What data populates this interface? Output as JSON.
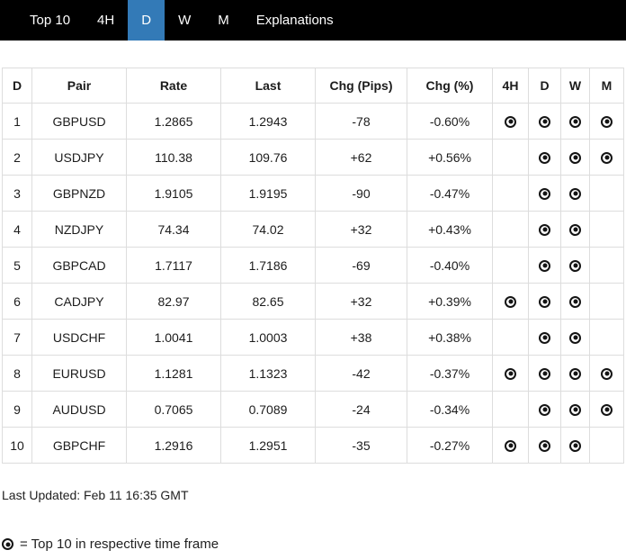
{
  "navbar": {
    "items": [
      {
        "label": "Top 10",
        "active": false
      },
      {
        "label": "4H",
        "active": false
      },
      {
        "label": "D",
        "active": true
      },
      {
        "label": "W",
        "active": false
      },
      {
        "label": "M",
        "active": false
      },
      {
        "label": "Explanations",
        "active": false
      }
    ]
  },
  "table": {
    "columns": [
      "D",
      "Pair",
      "Rate",
      "Last",
      "Chg (Pips)",
      "Chg (%)",
      "4H",
      "D",
      "W",
      "M"
    ],
    "rows": [
      {
        "rank": "1",
        "pair": "GBPUSD",
        "rate": "1.2865",
        "last": "1.2943",
        "chg_pips": "-78",
        "chg_pct": "-0.60%",
        "timeframes": {
          "4H": true,
          "D": true,
          "W": true,
          "M": true
        }
      },
      {
        "rank": "2",
        "pair": "USDJPY",
        "rate": "110.38",
        "last": "109.76",
        "chg_pips": "+62",
        "chg_pct": "+0.56%",
        "timeframes": {
          "4H": false,
          "D": true,
          "W": true,
          "M": true
        }
      },
      {
        "rank": "3",
        "pair": "GBPNZD",
        "rate": "1.9105",
        "last": "1.9195",
        "chg_pips": "-90",
        "chg_pct": "-0.47%",
        "timeframes": {
          "4H": false,
          "D": true,
          "W": true,
          "M": false
        }
      },
      {
        "rank": "4",
        "pair": "NZDJPY",
        "rate": "74.34",
        "last": "74.02",
        "chg_pips": "+32",
        "chg_pct": "+0.43%",
        "timeframes": {
          "4H": false,
          "D": true,
          "W": true,
          "M": false
        }
      },
      {
        "rank": "5",
        "pair": "GBPCAD",
        "rate": "1.7117",
        "last": "1.7186",
        "chg_pips": "-69",
        "chg_pct": "-0.40%",
        "timeframes": {
          "4H": false,
          "D": true,
          "W": true,
          "M": false
        }
      },
      {
        "rank": "6",
        "pair": "CADJPY",
        "rate": "82.97",
        "last": "82.65",
        "chg_pips": "+32",
        "chg_pct": "+0.39%",
        "timeframes": {
          "4H": true,
          "D": true,
          "W": true,
          "M": false
        }
      },
      {
        "rank": "7",
        "pair": "USDCHF",
        "rate": "1.0041",
        "last": "1.0003",
        "chg_pips": "+38",
        "chg_pct": "+0.38%",
        "timeframes": {
          "4H": false,
          "D": true,
          "W": true,
          "M": false
        }
      },
      {
        "rank": "8",
        "pair": "EURUSD",
        "rate": "1.1281",
        "last": "1.1323",
        "chg_pips": "-42",
        "chg_pct": "-0.37%",
        "timeframes": {
          "4H": true,
          "D": true,
          "W": true,
          "M": true
        }
      },
      {
        "rank": "9",
        "pair": "AUDUSD",
        "rate": "0.7065",
        "last": "0.7089",
        "chg_pips": "-24",
        "chg_pct": "-0.34%",
        "timeframes": {
          "4H": false,
          "D": true,
          "W": true,
          "M": true
        }
      },
      {
        "rank": "10",
        "pair": "GBPCHF",
        "rate": "1.2916",
        "last": "1.2951",
        "chg_pips": "-35",
        "chg_pct": "-0.27%",
        "timeframes": {
          "4H": true,
          "D": true,
          "W": true,
          "M": false
        }
      }
    ]
  },
  "footer": {
    "last_updated": "Last Updated: Feb 11 16:35 GMT",
    "legend": "= Top 10 in respective time frame"
  },
  "icons": {
    "timeframe_marker": "bullseye-icon"
  },
  "colors": {
    "navbar_bg": "#000000",
    "accent": "#337ab7",
    "border": "#dddddd",
    "text": "#1c1c1c",
    "icon": "#141414"
  }
}
